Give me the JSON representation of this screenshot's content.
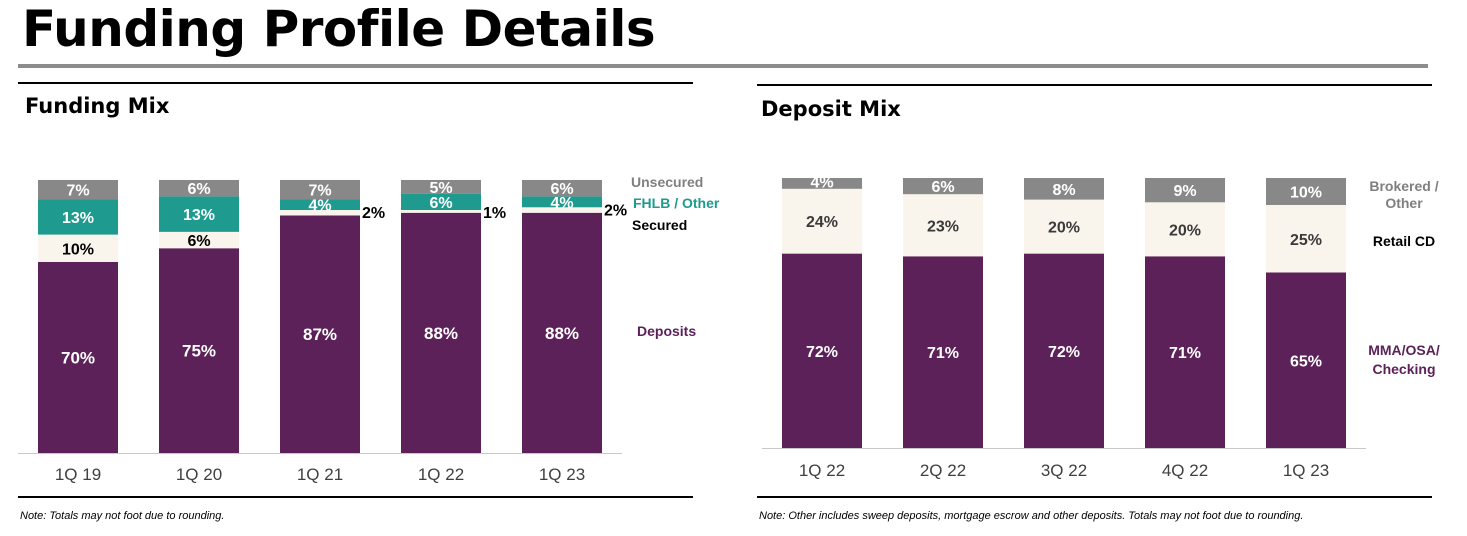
{
  "page": {
    "title": "Funding Profile Details"
  },
  "funding_mix": {
    "title": "Funding Mix",
    "note": "Note: Totals may not foot due to rounding."
  },
  "deposit_mix": {
    "title": "Deposit Mix",
    "note": "Note: Other includes sweep deposits, mortgage escrow and other deposits. Totals may not foot due to rounding."
  },
  "colors": {
    "deposits": "#5c2159",
    "secured": "#faf5ec",
    "fhlb_other": "#1f9a8e",
    "unsecured": "#888888",
    "fhlb_label": "#1f9a8e",
    "unsecured_label": "#7f7f7f",
    "deposits_label": "#5c2159",
    "secured_label": "#000000",
    "axis": "#c8c8c8",
    "tick": "#404040"
  },
  "chart_data": [
    {
      "type": "bar",
      "stacked": true,
      "title": "Funding Mix",
      "categories": [
        "1Q 19",
        "1Q 20",
        "1Q 21",
        "1Q 22",
        "1Q 23"
      ],
      "series": [
        {
          "name": "Deposits",
          "values": [
            70,
            75,
            87,
            88,
            88
          ],
          "labels": [
            "70%",
            "75%",
            "87%",
            "88%",
            "88%"
          ]
        },
        {
          "name": "Secured",
          "values": [
            10,
            6,
            2,
            1,
            2
          ],
          "labels": [
            "10%",
            "6%",
            "2%",
            "1%",
            "2%"
          ]
        },
        {
          "name": "FHLB / Other",
          "values": [
            13,
            13,
            4,
            6,
            4
          ],
          "labels": [
            "13%",
            "13%",
            "4%",
            "6%",
            "4%"
          ]
        },
        {
          "name": "Unsecured",
          "values": [
            7,
            6,
            7,
            5,
            6
          ],
          "labels": [
            "7%",
            "6%",
            "7%",
            "5%",
            "6%"
          ]
        }
      ],
      "ylim": [
        0,
        100
      ],
      "grid": false,
      "legend": "right"
    },
    {
      "type": "bar",
      "stacked": true,
      "title": "Deposit Mix",
      "categories": [
        "1Q 22",
        "2Q 22",
        "3Q 22",
        "4Q 22",
        "1Q 23"
      ],
      "series": [
        {
          "name": "MMA/OSA/ Checking",
          "values": [
            72,
            71,
            72,
            71,
            65
          ],
          "labels": [
            "72%",
            "71%",
            "72%",
            "71%",
            "65%"
          ]
        },
        {
          "name": "Retail CD",
          "values": [
            24,
            23,
            20,
            20,
            25
          ],
          "labels": [
            "24%",
            "23%",
            "20%",
            "20%",
            "25%"
          ]
        },
        {
          "name": "Brokered / Other",
          "values": [
            4,
            6,
            8,
            9,
            10
          ],
          "labels": [
            "4%",
            "6%",
            "8%",
            "9%",
            "10%"
          ]
        }
      ],
      "ylim": [
        0,
        100
      ],
      "grid": false,
      "legend": "right"
    }
  ]
}
